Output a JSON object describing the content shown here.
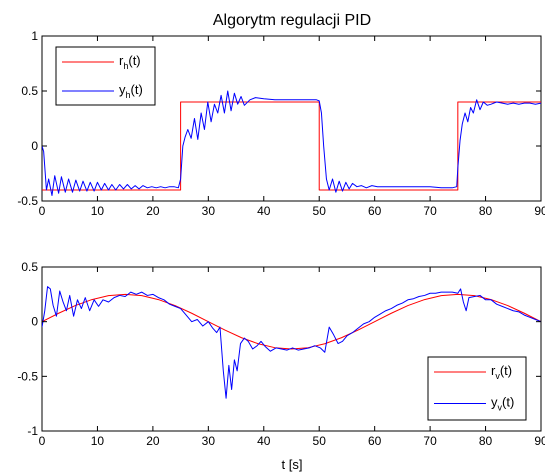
{
  "figure": {
    "title": "Algorytm regulacji PID",
    "xlabel": "t [s]"
  },
  "colors": {
    "reference": "#ff0000",
    "output": "#0000ff",
    "axes": "#000000",
    "background": "#ffffff"
  },
  "chart_data": [
    {
      "type": "line",
      "title": "Algorytm regulacji PID",
      "xlabel": "",
      "ylabel": "",
      "xlim": [
        0,
        90
      ],
      "ylim": [
        -0.5,
        1
      ],
      "xticks": [
        0,
        10,
        20,
        30,
        40,
        50,
        60,
        70,
        80,
        90
      ],
      "yticks": [
        -0.5,
        0,
        0.5,
        1
      ],
      "ytick_labels": [
        "-0.5",
        "0",
        "0.5",
        "1"
      ],
      "grid": false,
      "legend_position": "top-left",
      "series": [
        {
          "name": "r_h(t)",
          "label_main": "r",
          "label_sub": "h",
          "label_suffix": "(t)",
          "color": "#ff0000",
          "x": [
            0,
            25,
            25,
            50,
            50,
            75,
            75,
            90
          ],
          "y": [
            -0.4,
            -0.4,
            0.4,
            0.4,
            -0.4,
            -0.4,
            0.4,
            0.4
          ]
        },
        {
          "name": "y_h(t)",
          "label_main": "y",
          "label_sub": "h",
          "label_suffix": "(t)",
          "color": "#0000ff",
          "x": [
            0,
            0.3,
            0.8,
            1.2,
            1.8,
            2.3,
            3.0,
            3.5,
            4.2,
            4.8,
            5.5,
            6.1,
            6.8,
            7.4,
            8.1,
            8.7,
            9.4,
            10.0,
            10.7,
            11.3,
            12.0,
            12.6,
            13.3,
            14.0,
            14.7,
            15.4,
            16.1,
            16.8,
            17.5,
            18.2,
            19.0,
            19.8,
            20.6,
            21.4,
            22.2,
            23.0,
            23.8,
            24.6,
            25.0,
            25.4,
            25.8,
            26.3,
            26.9,
            27.5,
            28.1,
            28.7,
            29.3,
            29.9,
            30.5,
            31.1,
            31.7,
            32.3,
            32.9,
            33.5,
            34.1,
            34.7,
            35.3,
            35.9,
            36.5,
            37.5,
            38.5,
            40.0,
            42.0,
            44.0,
            46.0,
            48.0,
            49.5,
            50.0,
            50.4,
            50.8,
            51.3,
            51.8,
            52.4,
            53.0,
            53.6,
            54.2,
            54.8,
            55.4,
            56.0,
            56.8,
            57.6,
            58.5,
            59.5,
            60.5,
            62.0,
            64.0,
            66.0,
            68.0,
            70.0,
            72.0,
            74.0,
            74.8,
            75.0,
            75.4,
            75.8,
            76.3,
            76.8,
            77.3,
            77.8,
            78.4,
            79.0,
            79.6,
            80.3,
            81.0,
            82.0,
            83.0,
            84.0,
            85.0,
            86.0,
            87.0,
            88.0,
            89.0,
            90.0
          ],
          "y": [
            0.0,
            -0.05,
            -0.4,
            -0.3,
            -0.45,
            -0.27,
            -0.43,
            -0.28,
            -0.42,
            -0.3,
            -0.42,
            -0.31,
            -0.41,
            -0.32,
            -0.41,
            -0.33,
            -0.41,
            -0.33,
            -0.4,
            -0.34,
            -0.4,
            -0.35,
            -0.4,
            -0.35,
            -0.39,
            -0.35,
            -0.39,
            -0.36,
            -0.39,
            -0.36,
            -0.38,
            -0.37,
            -0.38,
            -0.37,
            -0.38,
            -0.37,
            -0.37,
            -0.38,
            -0.3,
            0.0,
            0.08,
            0.15,
            0.07,
            0.25,
            0.06,
            0.3,
            0.15,
            0.4,
            0.22,
            0.38,
            0.3,
            0.46,
            0.3,
            0.5,
            0.32,
            0.48,
            0.38,
            0.45,
            0.37,
            0.42,
            0.44,
            0.43,
            0.42,
            0.42,
            0.42,
            0.42,
            0.42,
            0.41,
            0.3,
            0.0,
            -0.3,
            -0.4,
            -0.3,
            -0.42,
            -0.32,
            -0.41,
            -0.33,
            -0.39,
            -0.34,
            -0.37,
            -0.36,
            -0.38,
            -0.36,
            -0.37,
            -0.37,
            -0.37,
            -0.37,
            -0.37,
            -0.37,
            -0.38,
            -0.38,
            -0.37,
            -0.2,
            0.05,
            0.2,
            0.3,
            0.22,
            0.35,
            0.3,
            0.42,
            0.33,
            0.4,
            0.37,
            0.38,
            0.4,
            0.39,
            0.38,
            0.39,
            0.38,
            0.39,
            0.39,
            0.38,
            0.39
          ]
        }
      ]
    },
    {
      "type": "line",
      "title": "",
      "xlabel": "t [s]",
      "ylabel": "",
      "xlim": [
        0,
        90
      ],
      "ylim": [
        -1,
        0.5
      ],
      "xticks": [
        0,
        10,
        20,
        30,
        40,
        50,
        60,
        70,
        80,
        90
      ],
      "yticks": [
        -1,
        -0.5,
        0,
        0.5
      ],
      "ytick_labels": [
        "-1",
        "-0.5",
        "0",
        "0.5"
      ],
      "grid": false,
      "legend_position": "bottom-right",
      "series": [
        {
          "name": "r_v(t)",
          "label_main": "r",
          "label_sub": "v",
          "label_suffix": "(t)",
          "color": "#ff0000",
          "function": "0.25*sin(2*pi*t/60)",
          "x": [
            0,
            3,
            6,
            9,
            12,
            15,
            18,
            21,
            24,
            27,
            30,
            33,
            36,
            39,
            42,
            45,
            48,
            51,
            54,
            57,
            60,
            63,
            66,
            69,
            72,
            75,
            78,
            81,
            84,
            87,
            90
          ],
          "y": [
            0.0,
            0.077,
            0.147,
            0.202,
            0.238,
            0.25,
            0.238,
            0.202,
            0.147,
            0.077,
            0.0,
            -0.077,
            -0.147,
            -0.202,
            -0.238,
            -0.25,
            -0.238,
            -0.202,
            -0.147,
            -0.077,
            0.0,
            0.077,
            0.147,
            0.202,
            0.238,
            0.25,
            0.238,
            0.202,
            0.147,
            0.077,
            0.0
          ]
        },
        {
          "name": "y_v(t)",
          "label_main": "y",
          "label_sub": "v",
          "label_suffix": "(t)",
          "color": "#0000ff",
          "x": [
            0,
            0.5,
            1.0,
            1.5,
            2.0,
            2.6,
            3.2,
            3.8,
            4.4,
            5.0,
            5.7,
            6.4,
            7.1,
            7.8,
            8.6,
            9.4,
            10.2,
            11.0,
            12.0,
            13.0,
            14.0,
            15.0,
            16.0,
            17.0,
            18.0,
            19.0,
            20.0,
            21.0,
            22.0,
            23.0,
            24.0,
            25.0,
            26.0,
            27.0,
            28.0,
            29.0,
            30.0,
            30.8,
            31.5,
            32.1,
            32.7,
            33.2,
            33.7,
            34.2,
            34.7,
            35.2,
            35.8,
            36.5,
            37.2,
            38.0,
            38.8,
            39.5,
            40.3,
            41.2,
            42.2,
            43.2,
            44.2,
            45.2,
            46.2,
            47.2,
            48.2,
            49.2,
            50.2,
            51.0,
            51.8,
            52.6,
            53.4,
            54.2,
            55.0,
            56.0,
            57.0,
            58.0,
            59.0,
            60.0,
            61.0,
            62.0,
            63.0,
            64.0,
            65.0,
            66.0,
            67.0,
            68.0,
            69.0,
            70.0,
            71.0,
            72.0,
            73.0,
            74.0,
            75.0,
            75.5,
            76.0,
            76.5,
            77.0,
            78.0,
            79.0,
            80.0,
            81.0,
            82.0,
            83.0,
            84.0,
            85.0,
            86.0,
            87.0,
            88.0,
            89.0,
            90.0
          ],
          "y": [
            -0.05,
            0.1,
            0.32,
            0.3,
            0.15,
            0.05,
            0.28,
            0.18,
            0.1,
            0.24,
            0.05,
            0.2,
            0.12,
            0.22,
            0.1,
            0.2,
            0.14,
            0.2,
            0.18,
            0.22,
            0.24,
            0.23,
            0.27,
            0.25,
            0.27,
            0.24,
            0.25,
            0.22,
            0.2,
            0.16,
            0.14,
            0.12,
            0.06,
            0.0,
            0.02,
            -0.04,
            0.0,
            -0.06,
            -0.1,
            -0.05,
            -0.45,
            -0.7,
            -0.4,
            -0.62,
            -0.35,
            -0.45,
            -0.2,
            -0.15,
            -0.18,
            -0.25,
            -0.22,
            -0.18,
            -0.23,
            -0.27,
            -0.24,
            -0.25,
            -0.26,
            -0.24,
            -0.26,
            -0.25,
            -0.24,
            -0.22,
            -0.24,
            -0.28,
            -0.05,
            -0.12,
            -0.2,
            -0.18,
            -0.13,
            -0.1,
            -0.06,
            -0.02,
            0.0,
            0.04,
            0.07,
            0.1,
            0.12,
            0.15,
            0.17,
            0.2,
            0.21,
            0.23,
            0.24,
            0.26,
            0.26,
            0.27,
            0.27,
            0.27,
            0.26,
            0.3,
            0.18,
            0.1,
            0.22,
            0.23,
            0.24,
            0.2,
            0.2,
            0.16,
            0.14,
            0.12,
            0.1,
            0.09,
            0.06,
            0.04,
            0.02,
            0.0
          ]
        }
      ]
    }
  ]
}
